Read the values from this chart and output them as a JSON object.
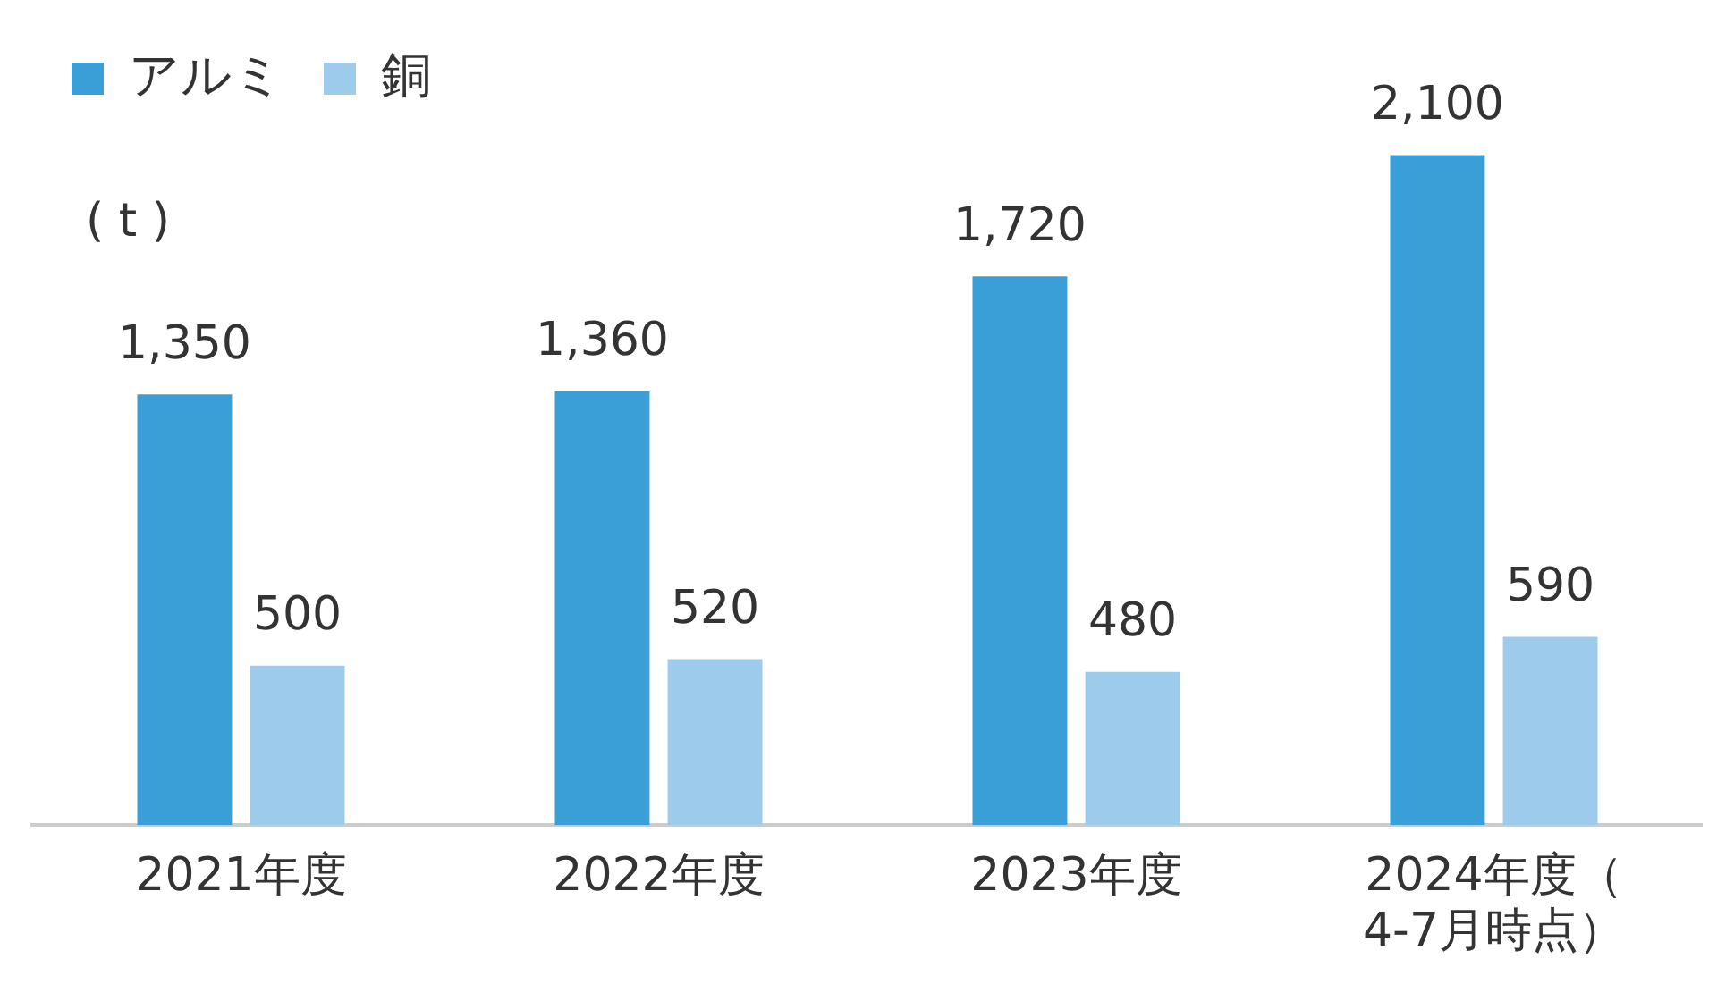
{
  "chart_data": {
    "type": "bar",
    "ylabel": "( t )",
    "categories": [
      "2021年度",
      "2022年度",
      "2023年度",
      "2024年度（4-7月時点）"
    ],
    "series": [
      {
        "name": "アルミ",
        "color": "#3a9fd6",
        "values": [
          1350,
          1360,
          1720,
          2100
        ],
        "value_labels": [
          "1,350",
          "1,360",
          "1,720",
          "2,100"
        ]
      },
      {
        "name": "銅",
        "color": "#9dcbeb",
        "values": [
          500,
          520,
          480,
          590
        ],
        "value_labels": [
          "500",
          "520",
          "480",
          "590"
        ]
      }
    ],
    "grid": false,
    "legend": "top left"
  }
}
